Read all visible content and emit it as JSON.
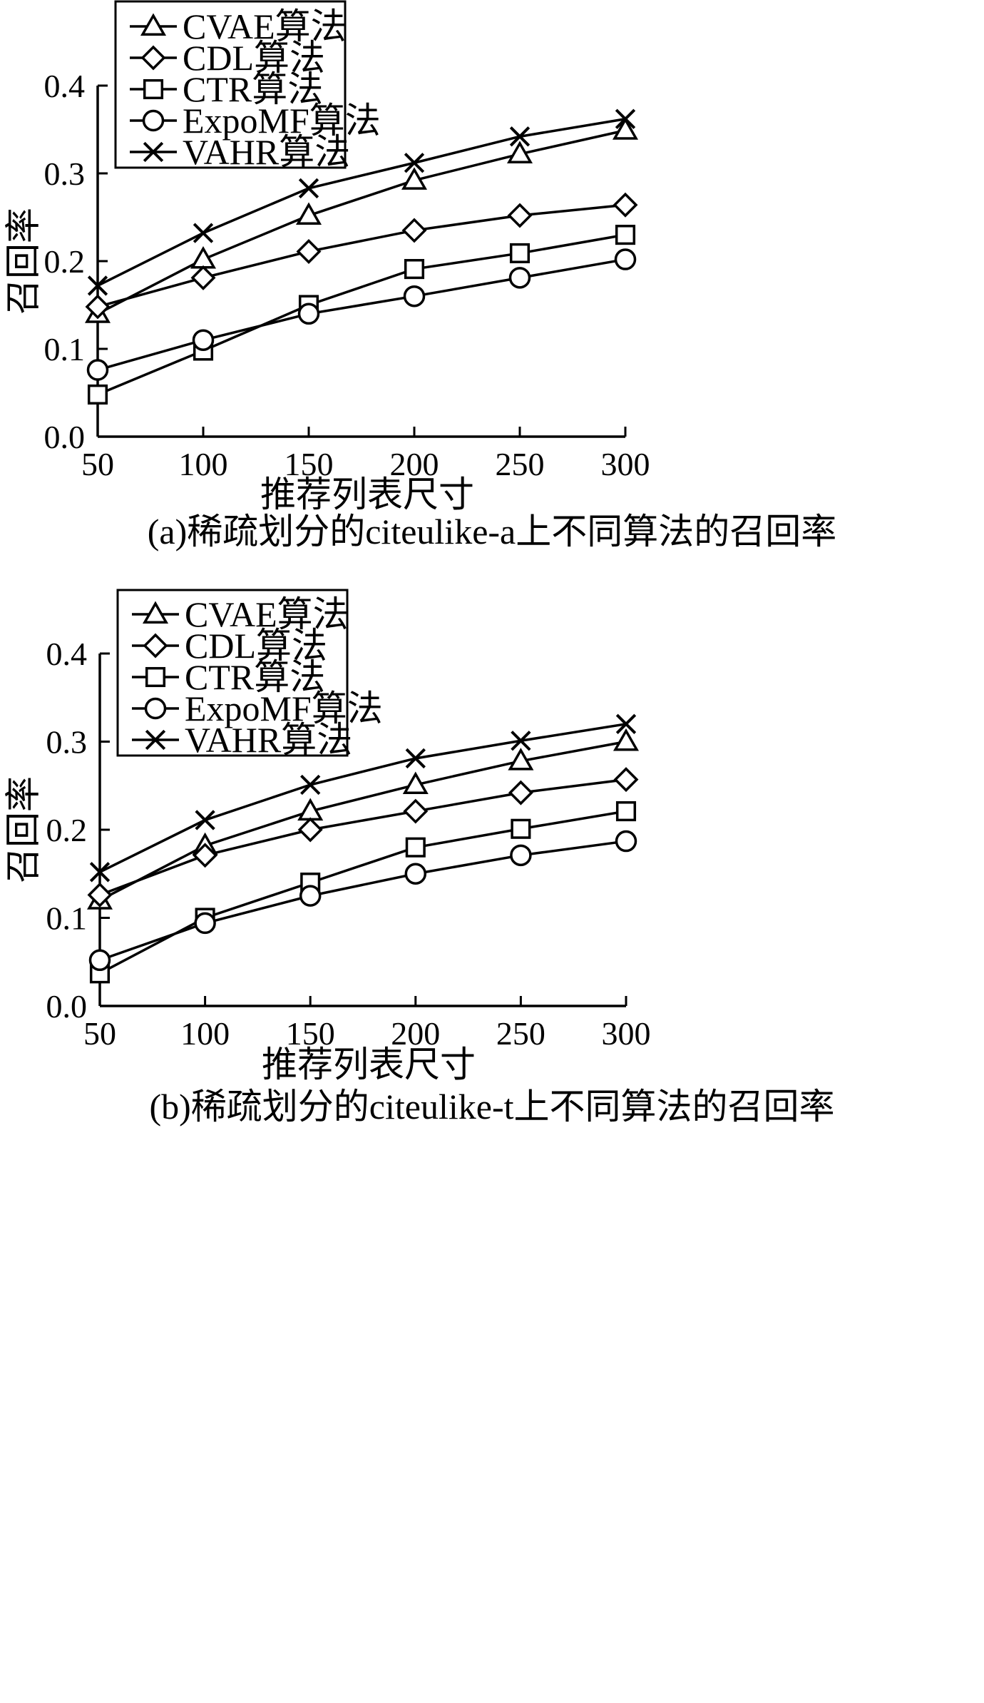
{
  "chart_data": [
    {
      "type": "line",
      "caption": "(a)稀疏划分的citeulike-a上不同算法的召回率",
      "xlabel": "推荐列表尺寸",
      "ylabel": "召回率",
      "x": [
        50,
        100,
        150,
        200,
        250,
        300
      ],
      "x_tick_labels": [
        "50",
        "100",
        "150",
        "200",
        "250",
        "300"
      ],
      "y_tick_labels": [
        "0.0",
        "0.1",
        "0.2",
        "0.3",
        "0.4"
      ],
      "xlim": [
        50,
        300
      ],
      "ylim": [
        0,
        0.4
      ],
      "grid": false,
      "legend_position": "top-left",
      "series": [
        {
          "name": "CVAE算法",
          "marker": "triangle",
          "values": [
            0.14,
            0.202,
            0.252,
            0.292,
            0.322,
            0.349
          ]
        },
        {
          "name": "CDL算法",
          "marker": "diamond",
          "values": [
            0.148,
            0.181,
            0.211,
            0.235,
            0.252,
            0.264
          ]
        },
        {
          "name": "CTR算法",
          "marker": "square",
          "values": [
            0.048,
            0.098,
            0.15,
            0.191,
            0.209,
            0.23
          ]
        },
        {
          "name": "ExpoMF算法",
          "marker": "circle",
          "values": [
            0.076,
            0.11,
            0.14,
            0.16,
            0.181,
            0.202
          ]
        },
        {
          "name": "VAHR算法",
          "marker": "x",
          "values": [
            0.172,
            0.232,
            0.283,
            0.312,
            0.342,
            0.362
          ]
        }
      ]
    },
    {
      "type": "line",
      "caption": "(b)稀疏划分的citeulike-t上不同算法的召回率",
      "xlabel": "推荐列表尺寸",
      "ylabel": "召回率",
      "x": [
        50,
        100,
        150,
        200,
        250,
        300
      ],
      "x_tick_labels": [
        "50",
        "100",
        "150",
        "200",
        "250",
        "300"
      ],
      "y_tick_labels": [
        "0.0",
        "0.1",
        "0.2",
        "0.3",
        "0.4"
      ],
      "xlim": [
        50,
        300
      ],
      "ylim": [
        0,
        0.4
      ],
      "grid": false,
      "legend_position": "top-left",
      "series": [
        {
          "name": "CVAE算法",
          "marker": "triangle",
          "values": [
            0.12,
            0.182,
            0.221,
            0.251,
            0.278,
            0.3
          ]
        },
        {
          "name": "CDL算法",
          "marker": "diamond",
          "values": [
            0.126,
            0.171,
            0.2,
            0.221,
            0.242,
            0.257
          ]
        },
        {
          "name": "CTR算法",
          "marker": "square",
          "values": [
            0.037,
            0.1,
            0.14,
            0.18,
            0.201,
            0.221
          ]
        },
        {
          "name": "ExpoMF算法",
          "marker": "circle",
          "values": [
            0.052,
            0.094,
            0.125,
            0.15,
            0.171,
            0.187
          ]
        },
        {
          "name": "VAHR算法",
          "marker": "x",
          "values": [
            0.152,
            0.211,
            0.251,
            0.281,
            0.301,
            0.32
          ]
        }
      ]
    }
  ]
}
